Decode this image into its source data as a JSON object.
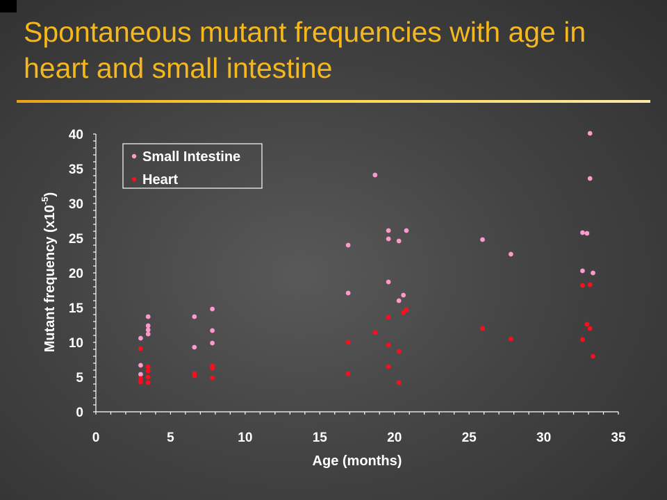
{
  "slide": {
    "title": "Spontaneous mutant frequencies with age in heart and small intestine"
  },
  "chart_data": {
    "type": "scatter",
    "xlabel": "Age (months)",
    "ylabel_main": "Mutant frequency (x10",
    "ylabel_exp": "-5",
    "ylabel_close": ")",
    "xlim": [
      0,
      35
    ],
    "ylim": [
      0,
      40
    ],
    "x_ticks": [
      0,
      5,
      10,
      15,
      20,
      25,
      30,
      35
    ],
    "y_ticks": [
      0,
      5,
      10,
      15,
      20,
      25,
      30,
      35,
      40
    ],
    "grid": false,
    "legend_position": "top-left",
    "series": [
      {
        "name": "Small Intestine",
        "color": "#ff99cc",
        "points": [
          [
            3.0,
            10.6
          ],
          [
            3.0,
            6.7
          ],
          [
            3.0,
            5.4
          ],
          [
            3.5,
            13.7
          ],
          [
            3.5,
            12.4
          ],
          [
            3.5,
            11.8
          ],
          [
            3.5,
            11.2
          ],
          [
            6.6,
            13.7
          ],
          [
            6.6,
            9.3
          ],
          [
            7.8,
            14.8
          ],
          [
            7.8,
            11.7
          ],
          [
            7.8,
            9.9
          ],
          [
            16.9,
            24.0
          ],
          [
            16.9,
            17.1
          ],
          [
            18.7,
            34.1
          ],
          [
            19.6,
            26.1
          ],
          [
            19.6,
            24.9
          ],
          [
            19.6,
            18.7
          ],
          [
            20.3,
            24.6
          ],
          [
            20.3,
            16.0
          ],
          [
            20.6,
            16.8
          ],
          [
            20.8,
            26.1
          ],
          [
            25.9,
            24.8
          ],
          [
            27.8,
            22.7
          ],
          [
            32.6,
            25.8
          ],
          [
            32.9,
            25.7
          ],
          [
            32.6,
            20.3
          ],
          [
            33.1,
            40.1
          ],
          [
            33.1,
            33.6
          ],
          [
            33.3,
            20.0
          ]
        ]
      },
      {
        "name": "Heart",
        "color": "#ff0d1f",
        "points": [
          [
            3.0,
            9.1
          ],
          [
            3.0,
            4.8
          ],
          [
            3.0,
            4.3
          ],
          [
            3.5,
            6.5
          ],
          [
            3.5,
            5.9
          ],
          [
            3.5,
            5.0
          ],
          [
            3.5,
            4.2
          ],
          [
            6.6,
            5.5
          ],
          [
            6.6,
            5.2
          ],
          [
            7.8,
            6.6
          ],
          [
            7.8,
            6.3
          ],
          [
            7.8,
            4.9
          ],
          [
            16.9,
            10.0
          ],
          [
            16.9,
            5.5
          ],
          [
            18.7,
            11.4
          ],
          [
            19.6,
            13.6
          ],
          [
            19.6,
            9.6
          ],
          [
            19.6,
            6.5
          ],
          [
            20.3,
            8.7
          ],
          [
            20.3,
            4.2
          ],
          [
            20.6,
            14.3
          ],
          [
            20.8,
            14.7
          ],
          [
            25.9,
            12.0
          ],
          [
            27.8,
            10.5
          ],
          [
            32.6,
            18.2
          ],
          [
            32.6,
            10.4
          ],
          [
            32.9,
            12.6
          ],
          [
            33.1,
            18.3
          ],
          [
            33.1,
            12.0
          ],
          [
            33.3,
            8.0
          ]
        ]
      }
    ]
  }
}
